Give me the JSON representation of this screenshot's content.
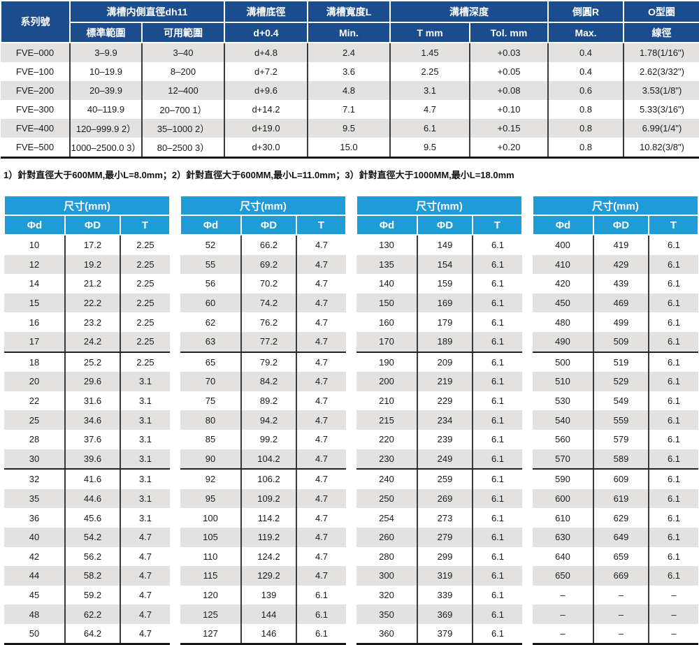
{
  "colors": {
    "header_navy": "#1b4d8e",
    "header_azure": "#1f9bd7",
    "row_gray": "#e3e2e0",
    "grid_line": "#3a3a3a",
    "heavy_line": "#161616"
  },
  "spec_table": {
    "header_row1": [
      "系列號",
      "溝槽内側直徑dh11",
      "溝槽底徑",
      "溝槽寬度L",
      "溝槽深度",
      "倒圓R",
      "O型圈"
    ],
    "header_row2": [
      "標準範圍",
      "可用範圍",
      "d+0.4",
      "Min.",
      "T mm",
      "Tol. mm",
      "Max.",
      "線徑"
    ],
    "rows": [
      [
        "FVE–000",
        "3–9.9",
        "3–40",
        "d+4.8",
        "2.4",
        "1.45",
        "+0.03",
        "0.4",
        "1.78(1/16\")"
      ],
      [
        "FVE–100",
        "10–19.9",
        "8–200",
        "d+7.2",
        "3.6",
        "2.25",
        "+0.05",
        "0.4",
        "2.62(3/32\")"
      ],
      [
        "FVE–200",
        "20–39.9",
        "12–400",
        "d+9.6",
        "4.8",
        "3.1",
        "+0.08",
        "0.6",
        "3.53(1/8\")"
      ],
      [
        "FVE–300",
        "40–119.9",
        "20–700 1）",
        "d+14.2",
        "7.1",
        "4.7",
        "+0.10",
        "0.8",
        "5.33(3/16\")"
      ],
      [
        "FVE–400",
        "120–999.9 2）",
        "35–1000 2）",
        "d+19.0",
        "9.5",
        "6.1",
        "+0.15",
        "0.8",
        "6.99(1/4\")"
      ],
      [
        "FVE–500",
        "1000–2500.0 3）",
        "80–2500 3）",
        "d+30.0",
        "15.0",
        "9.5",
        "+0.20",
        "0.8",
        "10.82(3/8\")"
      ]
    ]
  },
  "footnote": "1）針對直徑大于600MM,最小L=8.0mm；2）針對直徑大于600MM,最小L=11.0mm；3）針對直徑大于1000MM,最小L=18.0mm",
  "size_tables": {
    "title": "尺寸(mm)",
    "columns": [
      "Φd",
      "ΦD",
      "T"
    ],
    "tables": [
      {
        "rows": [
          [
            "10",
            "17.2",
            "2.25"
          ],
          [
            "12",
            "19.2",
            "2.25"
          ],
          [
            "14",
            "21.2",
            "2.25"
          ],
          [
            "15",
            "22.2",
            "2.25"
          ],
          [
            "16",
            "23.2",
            "2.25"
          ],
          [
            "17",
            "24.2",
            "2.25"
          ],
          [
            "18",
            "25.2",
            "2.25"
          ],
          [
            "20",
            "29.6",
            "3.1"
          ],
          [
            "22",
            "31.6",
            "3.1"
          ],
          [
            "25",
            "34.6",
            "3.1"
          ],
          [
            "28",
            "37.6",
            "3.1"
          ],
          [
            "30",
            "39.6",
            "3.1"
          ],
          [
            "32",
            "41.6",
            "3.1"
          ],
          [
            "35",
            "44.6",
            "3.1"
          ],
          [
            "36",
            "45.6",
            "3.1"
          ],
          [
            "40",
            "54.2",
            "4.7"
          ],
          [
            "42",
            "56.2",
            "4.7"
          ],
          [
            "44",
            "58.2",
            "4.7"
          ],
          [
            "45",
            "59.2",
            "4.7"
          ],
          [
            "48",
            "62.2",
            "4.7"
          ],
          [
            "50",
            "64.2",
            "4.7"
          ]
        ]
      },
      {
        "rows": [
          [
            "52",
            "66.2",
            "4.7"
          ],
          [
            "55",
            "69.2",
            "4.7"
          ],
          [
            "56",
            "70.2",
            "4.7"
          ],
          [
            "60",
            "74.2",
            "4.7"
          ],
          [
            "62",
            "76.2",
            "4.7"
          ],
          [
            "63",
            "77.2",
            "4.7"
          ],
          [
            "65",
            "79.2",
            "4.7"
          ],
          [
            "70",
            "84.2",
            "4.7"
          ],
          [
            "75",
            "89.2",
            "4.7"
          ],
          [
            "80",
            "94.2",
            "4.7"
          ],
          [
            "85",
            "99.2",
            "4.7"
          ],
          [
            "90",
            "104.2",
            "4.7"
          ],
          [
            "92",
            "106.2",
            "4.7"
          ],
          [
            "95",
            "109.2",
            "4.7"
          ],
          [
            "100",
            "114.2",
            "4.7"
          ],
          [
            "105",
            "119.2",
            "4.7"
          ],
          [
            "110",
            "124.2",
            "4.7"
          ],
          [
            "115",
            "129.2",
            "4.7"
          ],
          [
            "120",
            "139",
            "6.1"
          ],
          [
            "125",
            "144",
            "6.1"
          ],
          [
            "127",
            "146",
            "6.1"
          ]
        ]
      },
      {
        "rows": [
          [
            "130",
            "149",
            "6.1"
          ],
          [
            "135",
            "154",
            "6.1"
          ],
          [
            "140",
            "159",
            "6.1"
          ],
          [
            "150",
            "169",
            "6.1"
          ],
          [
            "160",
            "179",
            "6.1"
          ],
          [
            "170",
            "189",
            "6.1"
          ],
          [
            "190",
            "209",
            "6.1"
          ],
          [
            "200",
            "219",
            "6.1"
          ],
          [
            "210",
            "229",
            "6.1"
          ],
          [
            "215",
            "234",
            "6.1"
          ],
          [
            "220",
            "239",
            "6.1"
          ],
          [
            "230",
            "249",
            "6.1"
          ],
          [
            "240",
            "259",
            "6.1"
          ],
          [
            "250",
            "269",
            "6.1"
          ],
          [
            "254",
            "273",
            "6.1"
          ],
          [
            "260",
            "279",
            "6.1"
          ],
          [
            "280",
            "299",
            "6.1"
          ],
          [
            "300",
            "319",
            "6.1"
          ],
          [
            "320",
            "339",
            "6.1"
          ],
          [
            "350",
            "369",
            "6.1"
          ],
          [
            "360",
            "379",
            "6.1"
          ]
        ]
      },
      {
        "rows": [
          [
            "400",
            "419",
            "6.1"
          ],
          [
            "410",
            "429",
            "6.1"
          ],
          [
            "420",
            "439",
            "6.1"
          ],
          [
            "450",
            "469",
            "6.1"
          ],
          [
            "480",
            "499",
            "6.1"
          ],
          [
            "490",
            "509",
            "6.1"
          ],
          [
            "500",
            "519",
            "6.1"
          ],
          [
            "510",
            "529",
            "6.1"
          ],
          [
            "530",
            "549",
            "6.1"
          ],
          [
            "540",
            "559",
            "6.1"
          ],
          [
            "560",
            "579",
            "6.1"
          ],
          [
            "570",
            "589",
            "6.1"
          ],
          [
            "590",
            "609",
            "6.1"
          ],
          [
            "600",
            "619",
            "6.1"
          ],
          [
            "610",
            "629",
            "6.1"
          ],
          [
            "630",
            "649",
            "6.1"
          ],
          [
            "640",
            "659",
            "6.1"
          ],
          [
            "650",
            "669",
            "6.1"
          ],
          [
            "–",
            "–",
            "–"
          ],
          [
            "–",
            "–",
            "–"
          ],
          [
            "–",
            "–",
            "–"
          ]
        ]
      }
    ]
  }
}
